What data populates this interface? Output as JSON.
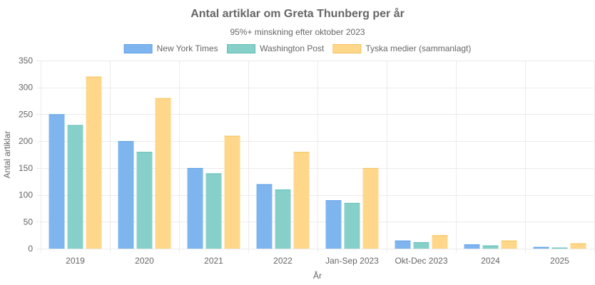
{
  "chart_data": {
    "type": "bar",
    "title": "Antal artiklar om Greta Thunberg per år",
    "subtitle": "95%+ minskning efter oktober 2023",
    "xlabel": "År",
    "ylabel": "Antal artiklar",
    "ylim": [
      0,
      350
    ],
    "yticks": [
      0,
      50,
      100,
      150,
      200,
      250,
      300,
      350
    ],
    "grid": true,
    "legend_position": "top",
    "categories": [
      "2019",
      "2020",
      "2021",
      "2022",
      "Jan-Sep 2023",
      "Okt-Dec 2023",
      "2024",
      "2025"
    ],
    "series": [
      {
        "name": "New York Times",
        "fill": "#7fb5ef",
        "stroke": "#5a9ee6",
        "values": [
          250,
          200,
          150,
          120,
          90,
          15,
          8,
          3
        ]
      },
      {
        "name": "Washington Post",
        "fill": "#87d0ca",
        "stroke": "#5bbdb5",
        "values": [
          230,
          180,
          140,
          110,
          85,
          12,
          6,
          2
        ]
      },
      {
        "name": "Tyska medier (sammanlagt)",
        "fill": "#ffd78a",
        "stroke": "#f5c25a",
        "values": [
          320,
          280,
          210,
          180,
          150,
          25,
          15,
          10
        ]
      }
    ]
  }
}
